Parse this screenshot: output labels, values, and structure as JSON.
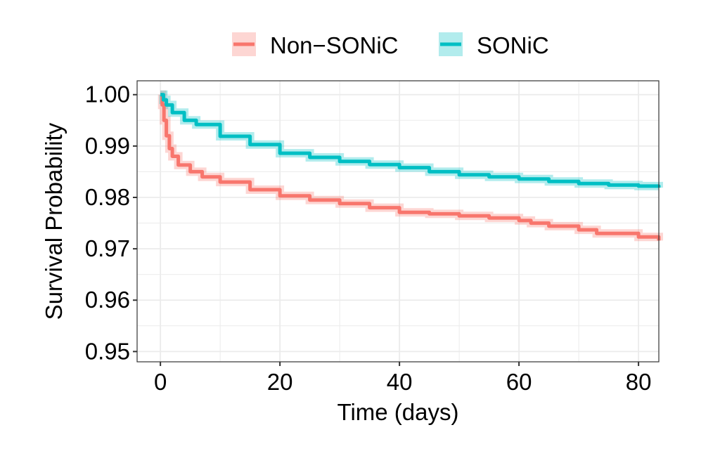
{
  "chart_data": {
    "type": "line",
    "title": "",
    "xlabel": "Time (days)",
    "ylabel": "Survival Probability",
    "xlim": [
      -3.9,
      83.4
    ],
    "ylim": [
      0.948,
      1.0027
    ],
    "xticks": [
      0,
      20,
      40,
      60,
      80
    ],
    "yticks": [
      0.95,
      0.96,
      0.97,
      0.98,
      0.99,
      1.0
    ],
    "ytick_labels": [
      "0.95",
      "0.96",
      "0.97",
      "0.98",
      "0.99",
      "1.00"
    ],
    "grid": true,
    "legend_position": "top",
    "series": [
      {
        "name": "Non−SONiC",
        "color": "#F8766D",
        "x": [
          0,
          0.3,
          0.6,
          1,
          1.5,
          2,
          3,
          5,
          7,
          10,
          15,
          20,
          25,
          30,
          35,
          40,
          45,
          50,
          55,
          60,
          62,
          65,
          70,
          73,
          80,
          83.4
        ],
        "y": [
          1.0,
          0.998,
          0.995,
          0.992,
          0.9895,
          0.988,
          0.9863,
          0.985,
          0.984,
          0.983,
          0.9815,
          0.9803,
          0.9795,
          0.9788,
          0.978,
          0.9771,
          0.9768,
          0.9764,
          0.976,
          0.9755,
          0.975,
          0.9744,
          0.9737,
          0.973,
          0.9723,
          0.9716
        ]
      },
      {
        "name": "SONiC",
        "color": "#00BFC4",
        "x": [
          0,
          0.5,
          1,
          2,
          4,
          6,
          10,
          15,
          20,
          25,
          30,
          35,
          40,
          45,
          50,
          55,
          60,
          65,
          70,
          75,
          80,
          83.4
        ],
        "y": [
          1.0,
          0.999,
          0.998,
          0.9965,
          0.995,
          0.9942,
          0.9919,
          0.9903,
          0.9886,
          0.9878,
          0.987,
          0.9864,
          0.9858,
          0.985,
          0.9844,
          0.984,
          0.9836,
          0.9831,
          0.9827,
          0.9824,
          0.9822,
          0.9819
        ]
      }
    ]
  }
}
